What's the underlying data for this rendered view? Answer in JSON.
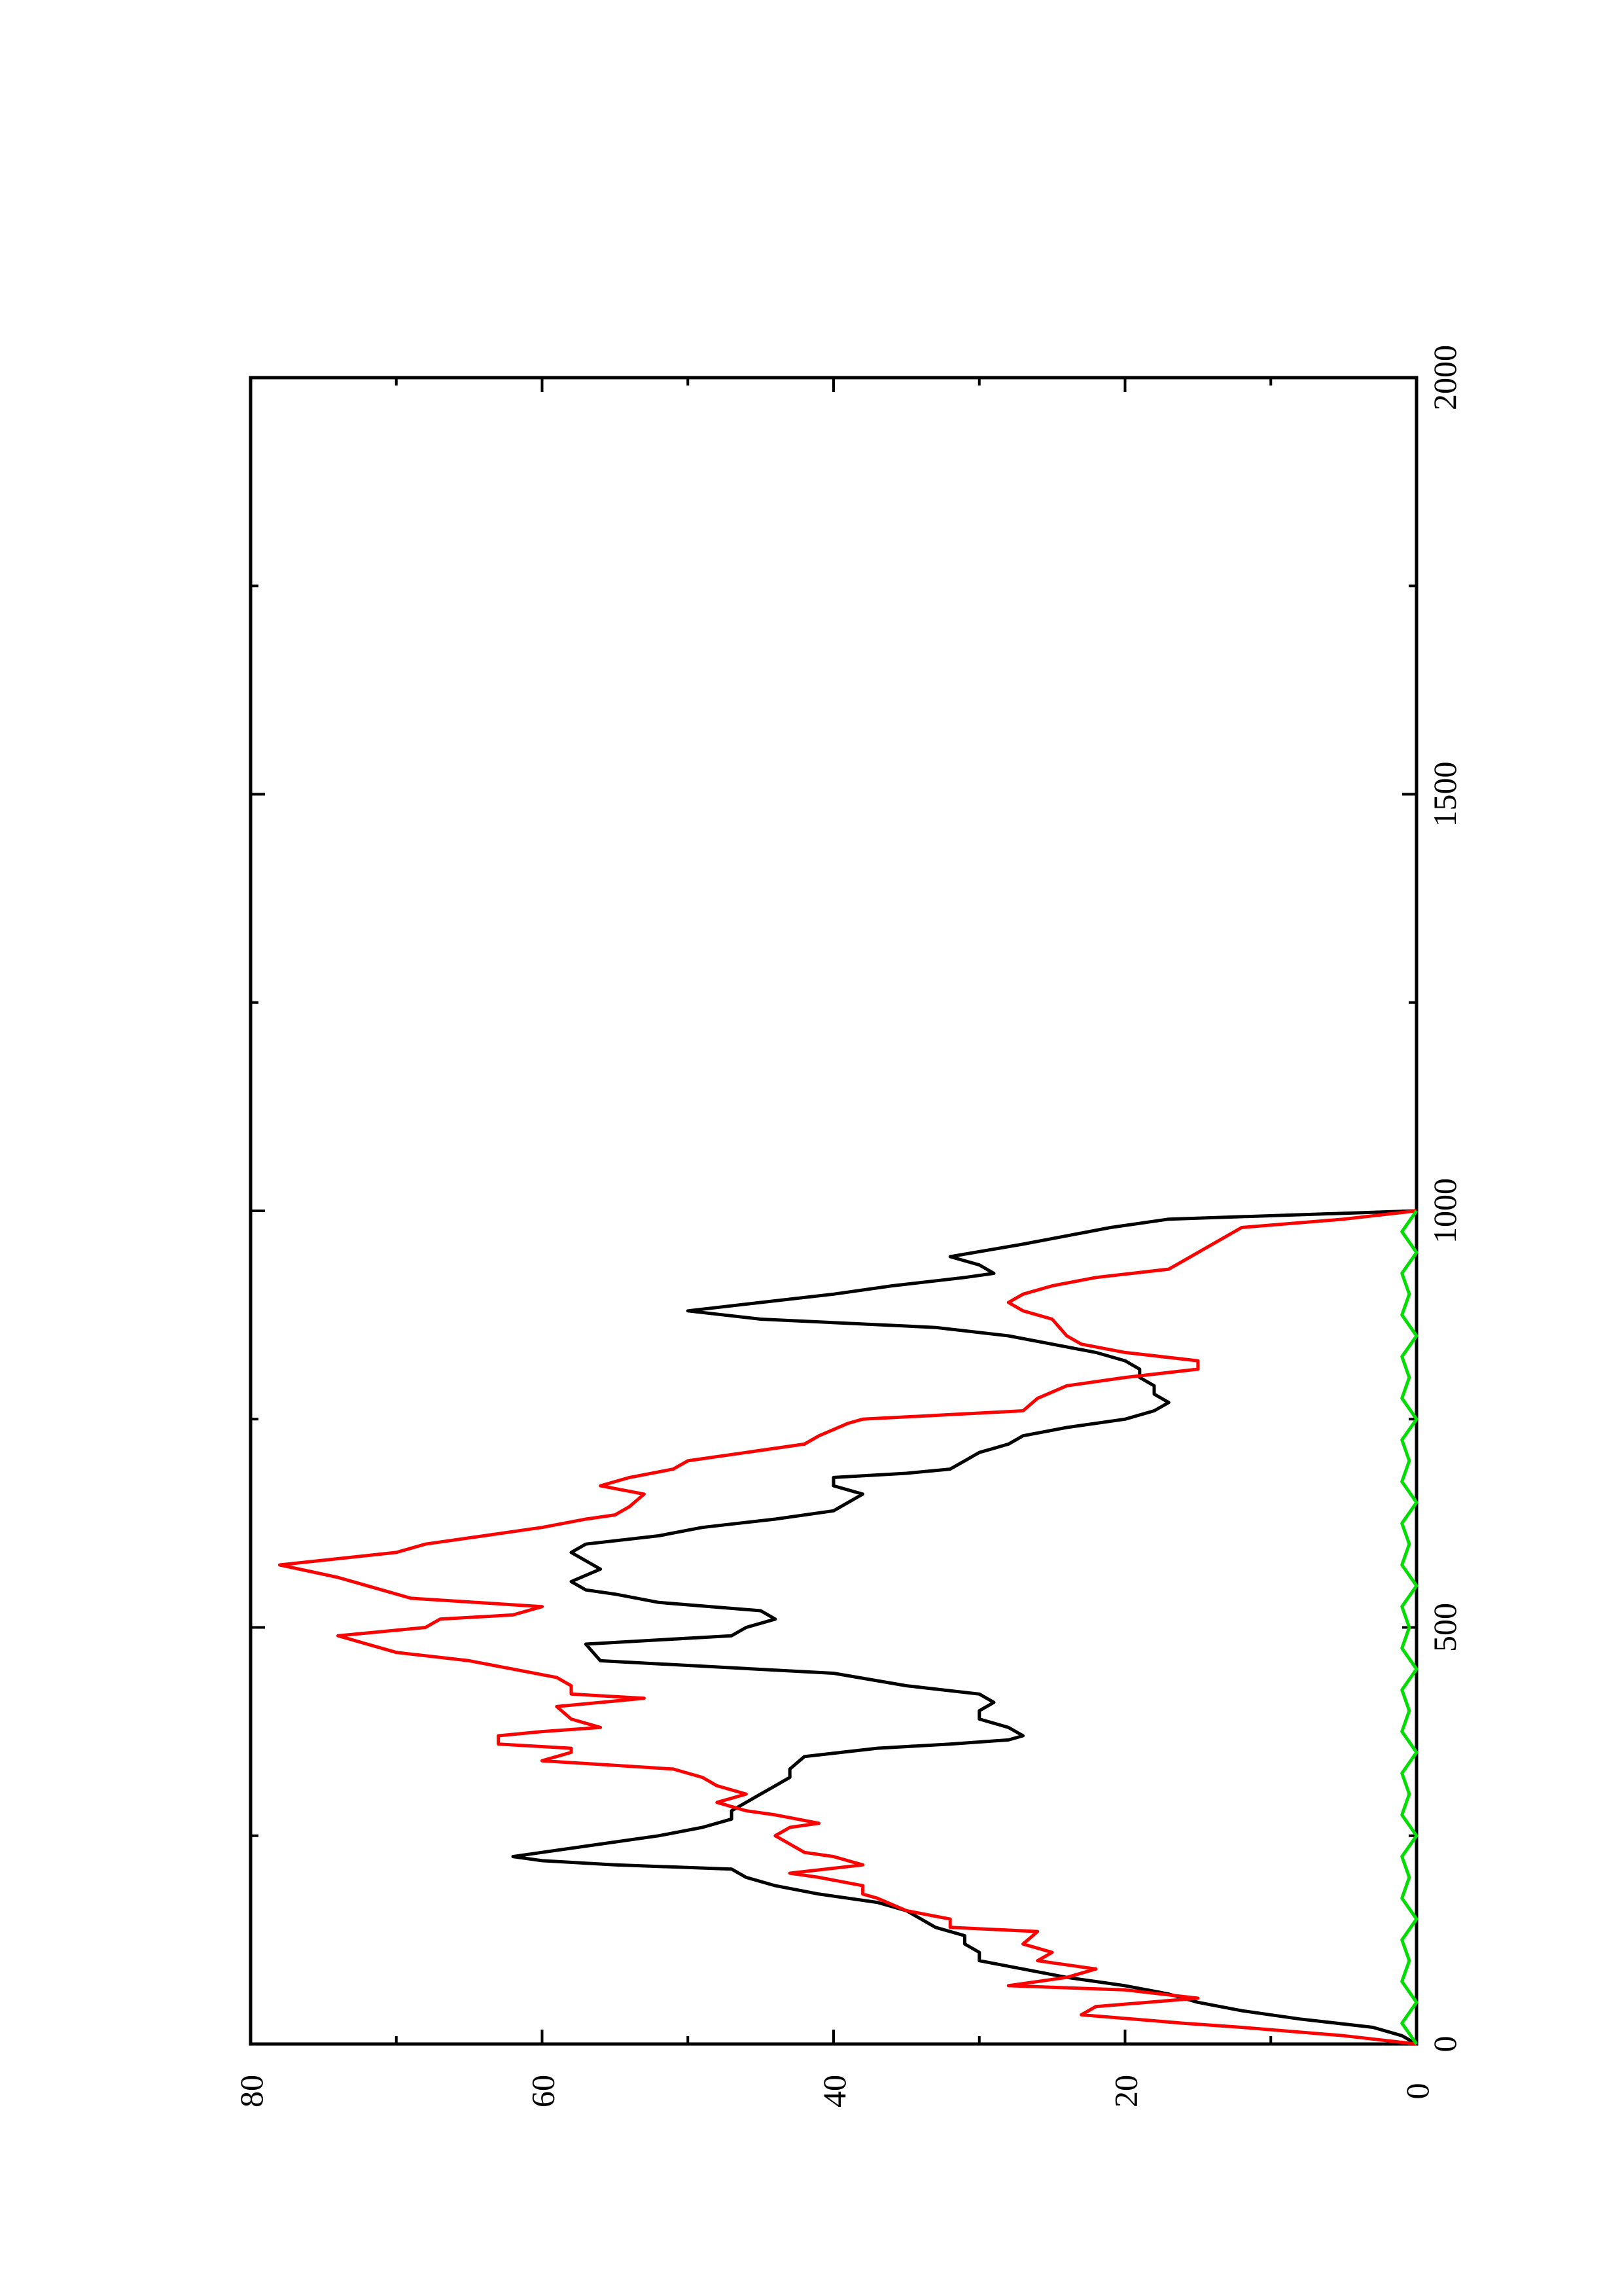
{
  "chart_data": {
    "type": "line",
    "orientation": "rotated-90-ccw",
    "title": "",
    "xlabel": "",
    "ylabel": "",
    "xlim": [
      0,
      2000
    ],
    "ylim": [
      0,
      80
    ],
    "x_ticks": [
      "0",
      "500",
      "1000",
      "1500",
      "2000"
    ],
    "y_ticks": [
      "0",
      "20",
      "40",
      "60",
      "80"
    ],
    "grid": false,
    "legend": "none",
    "series": [
      {
        "color": "#000000",
        "points": [
          [
            0,
            0
          ],
          [
            10,
            1
          ],
          [
            20,
            3
          ],
          [
            30,
            8
          ],
          [
            40,
            12
          ],
          [
            50,
            15
          ],
          [
            60,
            17
          ],
          [
            70,
            20
          ],
          [
            80,
            24
          ],
          [
            90,
            27
          ],
          [
            100,
            30
          ],
          [
            110,
            30
          ],
          [
            120,
            31
          ],
          [
            130,
            31
          ],
          [
            140,
            33
          ],
          [
            150,
            34
          ],
          [
            160,
            35
          ],
          [
            170,
            37
          ],
          [
            180,
            41
          ],
          [
            190,
            44
          ],
          [
            200,
            46
          ],
          [
            210,
            47
          ],
          [
            215,
            55
          ],
          [
            220,
            60
          ],
          [
            225,
            62
          ],
          [
            230,
            60
          ],
          [
            240,
            56
          ],
          [
            250,
            52
          ],
          [
            260,
            49
          ],
          [
            270,
            47
          ],
          [
            280,
            47
          ],
          [
            290,
            46
          ],
          [
            300,
            45
          ],
          [
            310,
            44
          ],
          [
            320,
            43
          ],
          [
            330,
            43
          ],
          [
            345,
            42
          ],
          [
            355,
            37
          ],
          [
            360,
            32
          ],
          [
            365,
            28
          ],
          [
            370,
            27
          ],
          [
            380,
            28
          ],
          [
            390,
            30
          ],
          [
            400,
            30
          ],
          [
            410,
            29
          ],
          [
            420,
            30
          ],
          [
            430,
            35
          ],
          [
            445,
            40
          ],
          [
            460,
            56
          ],
          [
            480,
            57
          ],
          [
            490,
            47
          ],
          [
            500,
            46
          ],
          [
            510,
            44
          ],
          [
            520,
            45
          ],
          [
            530,
            52
          ],
          [
            540,
            55
          ],
          [
            545,
            57
          ],
          [
            555,
            58
          ],
          [
            570,
            56
          ],
          [
            580,
            57
          ],
          [
            590,
            58
          ],
          [
            600,
            57
          ],
          [
            610,
            52
          ],
          [
            620,
            49
          ],
          [
            630,
            44
          ],
          [
            640,
            40
          ],
          [
            650,
            39
          ],
          [
            660,
            38
          ],
          [
            670,
            40
          ],
          [
            680,
            40
          ],
          [
            685,
            35
          ],
          [
            690,
            32
          ],
          [
            700,
            31
          ],
          [
            710,
            30
          ],
          [
            720,
            28
          ],
          [
            730,
            27
          ],
          [
            740,
            24
          ],
          [
            750,
            20
          ],
          [
            760,
            18
          ],
          [
            770,
            17
          ],
          [
            780,
            18
          ],
          [
            790,
            18
          ],
          [
            800,
            19
          ],
          [
            810,
            19
          ],
          [
            820,
            20
          ],
          [
            830,
            22
          ],
          [
            840,
            25
          ],
          [
            850,
            28
          ],
          [
            860,
            33
          ],
          [
            870,
            45
          ],
          [
            880,
            50
          ],
          [
            890,
            45
          ],
          [
            900,
            40
          ],
          [
            910,
            36
          ],
          [
            920,
            31
          ],
          [
            925,
            29
          ],
          [
            935,
            30
          ],
          [
            945,
            32
          ],
          [
            960,
            27
          ],
          [
            970,
            24
          ],
          [
            980,
            21
          ],
          [
            990,
            17
          ],
          [
            1000,
            0
          ]
        ]
      },
      {
        "color": "#ff0000",
        "points": [
          [
            0,
            0
          ],
          [
            10,
            5
          ],
          [
            20,
            12
          ],
          [
            25,
            16
          ],
          [
            35,
            23
          ],
          [
            45,
            22
          ],
          [
            55,
            15
          ],
          [
            65,
            20
          ],
          [
            70,
            28
          ],
          [
            80,
            24
          ],
          [
            90,
            22
          ],
          [
            100,
            26
          ],
          [
            110,
            25
          ],
          [
            120,
            27
          ],
          [
            135,
            26
          ],
          [
            140,
            32
          ],
          [
            150,
            32
          ],
          [
            160,
            35
          ],
          [
            175,
            37
          ],
          [
            180,
            38
          ],
          [
            190,
            38
          ],
          [
            200,
            41
          ],
          [
            205,
            43
          ],
          [
            215,
            38
          ],
          [
            225,
            40
          ],
          [
            230,
            42
          ],
          [
            240,
            43
          ],
          [
            250,
            44
          ],
          [
            260,
            43
          ],
          [
            265,
            41
          ],
          [
            275,
            44
          ],
          [
            280,
            46
          ],
          [
            290,
            48
          ],
          [
            300,
            46
          ],
          [
            310,
            48
          ],
          [
            320,
            49
          ],
          [
            330,
            51
          ],
          [
            340,
            60
          ],
          [
            350,
            58
          ],
          [
            355,
            58
          ],
          [
            360,
            63
          ],
          [
            370,
            63
          ],
          [
            375,
            60
          ],
          [
            380,
            56
          ],
          [
            390,
            58
          ],
          [
            405,
            59
          ],
          [
            415,
            53
          ],
          [
            420,
            58
          ],
          [
            430,
            58
          ],
          [
            440,
            59
          ],
          [
            450,
            62
          ],
          [
            460,
            65
          ],
          [
            470,
            70
          ],
          [
            480,
            72
          ],
          [
            490,
            74
          ],
          [
            500,
            68
          ],
          [
            510,
            67
          ],
          [
            515,
            62
          ],
          [
            525,
            60
          ],
          [
            535,
            69
          ],
          [
            550,
            72
          ],
          [
            560,
            74
          ],
          [
            575,
            78
          ],
          [
            590,
            70
          ],
          [
            600,
            68
          ],
          [
            610,
            64
          ],
          [
            620,
            60
          ],
          [
            630,
            57
          ],
          [
            635,
            55
          ],
          [
            645,
            54
          ],
          [
            660,
            53
          ],
          [
            670,
            56
          ],
          [
            680,
            54
          ],
          [
            690,
            51
          ],
          [
            700,
            50
          ],
          [
            710,
            46
          ],
          [
            720,
            42
          ],
          [
            730,
            41
          ],
          [
            745,
            39
          ],
          [
            750,
            38
          ],
          [
            760,
            27
          ],
          [
            775,
            26
          ],
          [
            790,
            24
          ],
          [
            800,
            20
          ],
          [
            810,
            15
          ],
          [
            820,
            15
          ],
          [
            830,
            20
          ],
          [
            840,
            23
          ],
          [
            850,
            24
          ],
          [
            870,
            25
          ],
          [
            880,
            27
          ],
          [
            890,
            28
          ],
          [
            900,
            27
          ],
          [
            910,
            25
          ],
          [
            920,
            22
          ],
          [
            930,
            17
          ],
          [
            940,
            16
          ],
          [
            950,
            15
          ],
          [
            960,
            14
          ],
          [
            980,
            12
          ],
          [
            990,
            5
          ],
          [
            1000,
            0
          ]
        ]
      },
      {
        "color": "#00dd00",
        "points": [
          [
            0,
            0
          ],
          [
            25,
            1
          ],
          [
            50,
            0
          ],
          [
            75,
            1
          ],
          [
            100,
            0.5
          ],
          [
            125,
            1
          ],
          [
            150,
            0
          ],
          [
            175,
            1
          ],
          [
            200,
            0.5
          ],
          [
            225,
            1
          ],
          [
            250,
            0
          ],
          [
            275,
            1
          ],
          [
            300,
            0.5
          ],
          [
            325,
            1
          ],
          [
            350,
            0
          ],
          [
            375,
            1
          ],
          [
            400,
            0.5
          ],
          [
            425,
            1
          ],
          [
            450,
            0
          ],
          [
            475,
            1
          ],
          [
            500,
            0.5
          ],
          [
            525,
            1
          ],
          [
            550,
            0
          ],
          [
            575,
            1
          ],
          [
            600,
            0.5
          ],
          [
            625,
            1
          ],
          [
            650,
            0
          ],
          [
            675,
            1
          ],
          [
            700,
            0.5
          ],
          [
            725,
            1
          ],
          [
            750,
            0
          ],
          [
            775,
            1
          ],
          [
            800,
            0.5
          ],
          [
            825,
            1
          ],
          [
            850,
            0
          ],
          [
            875,
            1
          ],
          [
            900,
            0.5
          ],
          [
            925,
            1
          ],
          [
            950,
            0
          ],
          [
            975,
            1
          ],
          [
            1000,
            0
          ]
        ]
      }
    ]
  }
}
